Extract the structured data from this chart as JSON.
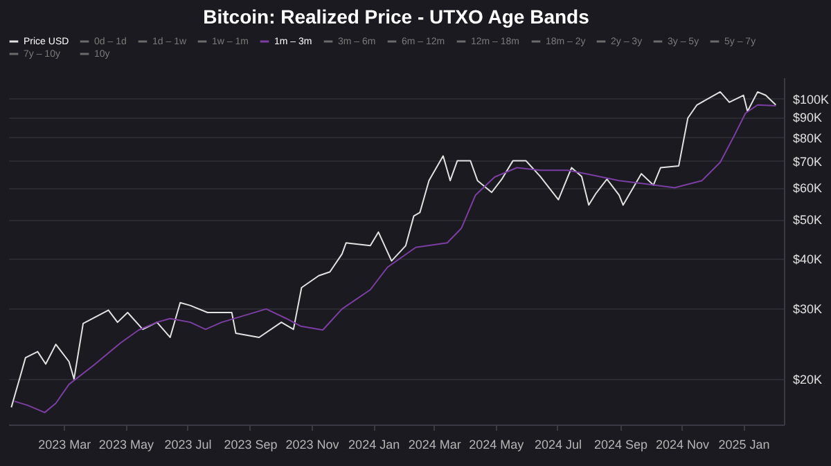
{
  "chart_data": {
    "type": "line",
    "title": "Bitcoin: Realized Price - UTXO Age Bands",
    "log": "y",
    "grid": "y",
    "legend": "top left",
    "tick_labels": "xy",
    "xlim": [
      "2023-01-05",
      "2025-02-10"
    ],
    "xticks": [
      {
        "value": "2023-03-01",
        "label": "2023 Mar"
      },
      {
        "value": "2023-05-01",
        "label": "2023 May"
      },
      {
        "value": "2023-07-01",
        "label": "2023 Jul"
      },
      {
        "value": "2023-09-01",
        "label": "2023 Sep"
      },
      {
        "value": "2023-11-01",
        "label": "2023 Nov"
      },
      {
        "value": "2024-01-01",
        "label": "2024 Jan"
      },
      {
        "value": "2024-03-01",
        "label": "2024 Mar"
      },
      {
        "value": "2024-05-01",
        "label": "2024 May"
      },
      {
        "value": "2024-07-01",
        "label": "2024 Jul"
      },
      {
        "value": "2024-09-01",
        "label": "2024 Sep"
      },
      {
        "value": "2024-11-01",
        "label": "2024 Nov"
      },
      {
        "value": "2025-01-01",
        "label": "2025 Jan"
      }
    ],
    "ylim": [
      15400,
      113000
    ],
    "yticks": [
      {
        "value": 20000,
        "label": "$20K"
      },
      {
        "value": 30000,
        "label": "$30K"
      },
      {
        "value": 40000,
        "label": "$40K"
      },
      {
        "value": 50000,
        "label": "$50K"
      },
      {
        "value": 60000,
        "label": "$60K"
      },
      {
        "value": 70000,
        "label": "$70K"
      },
      {
        "value": 80000,
        "label": "$80K"
      },
      {
        "value": 90000,
        "label": "$90K"
      },
      {
        "value": 100000,
        "label": "$100K"
      }
    ],
    "series": [
      {
        "name": "Price USD",
        "color": "#e2e2e2",
        "x": [
          "2023-01-08",
          "2023-01-18",
          "2023-01-22",
          "2023-02-03",
          "2023-02-11",
          "2023-02-21",
          "2023-03-06",
          "2023-03-11",
          "2023-03-20",
          "2023-04-14",
          "2023-04-23",
          "2023-05-03",
          "2023-05-18",
          "2023-06-01",
          "2023-06-14",
          "2023-06-24",
          "2023-07-04",
          "2023-07-21",
          "2023-08-14",
          "2023-08-18",
          "2023-09-10",
          "2023-10-02",
          "2023-10-14",
          "2023-10-22",
          "2023-11-08",
          "2023-11-19",
          "2023-12-01",
          "2023-12-05",
          "2023-12-29",
          "2024-01-06",
          "2024-01-19",
          "2024-02-02",
          "2024-02-10",
          "2024-02-16",
          "2024-02-25",
          "2024-03-10",
          "2024-03-17",
          "2024-03-24",
          "2024-04-06",
          "2024-04-13",
          "2024-04-27",
          "2024-05-07",
          "2024-05-18",
          "2024-05-31",
          "2024-06-14",
          "2024-07-02",
          "2024-07-15",
          "2024-07-25",
          "2024-08-01",
          "2024-08-08",
          "2024-08-19",
          "2024-08-31",
          "2024-09-04",
          "2024-09-22",
          "2024-10-04",
          "2024-10-11",
          "2024-10-29",
          "2024-11-07",
          "2024-11-16",
          "2024-12-09",
          "2024-12-18",
          "2025-01-01",
          "2025-01-05",
          "2025-01-15",
          "2025-01-23",
          "2025-02-02"
        ],
        "values": [
          17000,
          20800,
          22600,
          23400,
          21800,
          24400,
          22100,
          20000,
          27500,
          29700,
          27700,
          29300,
          26600,
          27700,
          25400,
          31000,
          30500,
          29300,
          29300,
          26000,
          25400,
          27700,
          26600,
          33800,
          36200,
          37000,
          41000,
          43700,
          43000,
          46500,
          39400,
          43000,
          51000,
          52000,
          62500,
          72000,
          62500,
          70000,
          70000,
          62500,
          58400,
          63000,
          70000,
          70000,
          64000,
          56000,
          67300,
          64000,
          54300,
          58000,
          63000,
          57500,
          54300,
          65000,
          60900,
          67300,
          68000,
          89500,
          96500,
          104000,
          98000,
          102000,
          93000,
          104000,
          102000,
          96500
        ]
      },
      {
        "name": "0d – 1d",
        "color": "#6b6b6b"
      },
      {
        "name": "1d – 1w",
        "color": "#6b6b6b"
      },
      {
        "name": "1w – 1m",
        "color": "#6b6b6b"
      },
      {
        "name": "1m – 3m",
        "color": "#7b3fa3",
        "x": [
          "2023-01-11",
          "2023-01-24",
          "2023-02-10",
          "2023-02-21",
          "2023-03-06",
          "2023-03-30",
          "2023-04-26",
          "2023-05-14",
          "2023-06-01",
          "2023-06-14",
          "2023-07-04",
          "2023-07-19",
          "2023-08-04",
          "2023-09-17",
          "2023-10-07",
          "2023-10-21",
          "2023-11-12",
          "2023-12-01",
          "2023-12-29",
          "2024-01-15",
          "2024-02-12",
          "2024-03-14",
          "2024-03-28",
          "2024-04-11",
          "2024-04-30",
          "2024-05-22",
          "2024-06-14",
          "2024-07-11",
          "2024-07-29",
          "2024-08-31",
          "2024-09-22",
          "2024-10-25",
          "2024-11-21",
          "2024-12-09",
          "2024-12-23",
          "2025-01-03",
          "2025-01-15",
          "2025-02-02"
        ],
        "values": [
          17600,
          17200,
          16500,
          17400,
          19400,
          21600,
          24600,
          26500,
          27700,
          28300,
          27700,
          26600,
          27700,
          29900,
          28300,
          27100,
          26500,
          29900,
          33400,
          38000,
          42600,
          43700,
          47500,
          57500,
          63800,
          67300,
          66300,
          66300,
          65000,
          62500,
          61500,
          60000,
          62500,
          69400,
          81000,
          92000,
          96500,
          96000
        ]
      },
      {
        "name": "3m – 6m",
        "color": "#6b6b6b"
      },
      {
        "name": "6m – 12m",
        "color": "#6b6b6b"
      },
      {
        "name": "12m – 18m",
        "color": "#6b6b6b"
      },
      {
        "name": "18m – 2y",
        "color": "#6b6b6b"
      },
      {
        "name": "2y – 3y",
        "color": "#6b6b6b"
      },
      {
        "name": "3y – 5y",
        "color": "#6b6b6b"
      },
      {
        "name": "5y – 7y",
        "color": "#6b6b6b"
      },
      {
        "name": "7y – 10y",
        "color": "#6b6b6b"
      },
      {
        "name": "10y",
        "color": "#6b6b6b"
      }
    ]
  }
}
